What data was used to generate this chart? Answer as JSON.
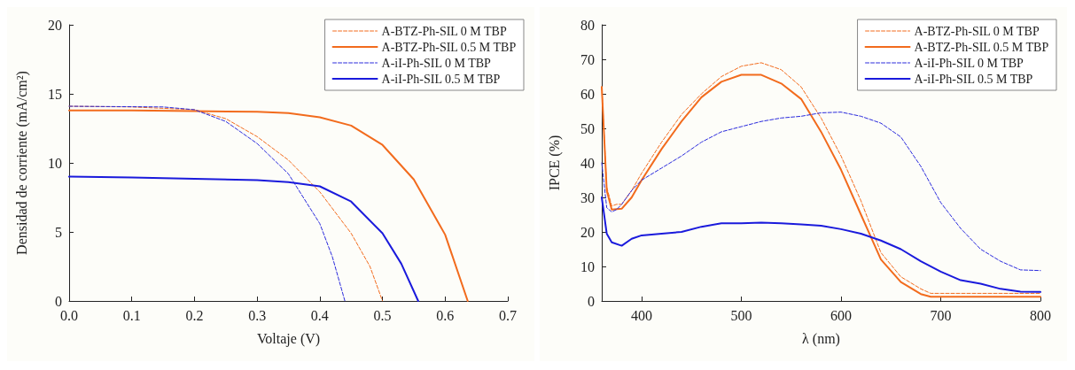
{
  "chart_data": [
    {
      "type": "line",
      "xlabel": "Voltaje (V)",
      "ylabel": "Densidad de corriente (mA/cm²)",
      "xlim": [
        0,
        0.7
      ],
      "ylim": [
        0,
        20
      ],
      "xticks": [
        {
          "value": 0,
          "label": "0.0"
        },
        0.1,
        0.2,
        0.3,
        0.4,
        0.5,
        0.6,
        0.7
      ],
      "yticks": [
        0,
        5,
        10,
        15,
        20
      ],
      "grid": false,
      "legend": "top right",
      "marker": "none",
      "series": [
        {
          "name": "A-BTZ-Ph-SIL 0 M TBP",
          "color": "#f26b1d",
          "line_style": "dashed",
          "x": [
            0,
            0.1,
            0.2,
            0.25,
            0.3,
            0.35,
            0.4,
            0.45,
            0.48,
            0.5
          ],
          "values": [
            14.1,
            14.05,
            13.85,
            13.2,
            11.9,
            10.2,
            7.9,
            4.9,
            2.5,
            0
          ]
        },
        {
          "name": "A-BTZ-Ph-SIL 0.5 M TBP",
          "color": "#f26b1d",
          "line_style": "solid",
          "x": [
            0,
            0.1,
            0.2,
            0.3,
            0.35,
            0.4,
            0.45,
            0.5,
            0.55,
            0.6,
            0.636
          ],
          "values": [
            13.8,
            13.8,
            13.75,
            13.7,
            13.6,
            13.3,
            12.7,
            11.3,
            8.8,
            4.8,
            0
          ]
        },
        {
          "name": "A-iI-Ph-SIL 0 M TBP",
          "color": "#2a2adc",
          "line_style": "dashed",
          "x": [
            0,
            0.15,
            0.2,
            0.25,
            0.3,
            0.35,
            0.4,
            0.42,
            0.44
          ],
          "values": [
            14.1,
            14.05,
            13.85,
            13.0,
            11.4,
            9.2,
            5.6,
            3.2,
            0
          ]
        },
        {
          "name": "A-iI-Ph-SIL 0.5 M TBP",
          "color": "#1a1adc",
          "line_style": "solid",
          "x": [
            0,
            0.1,
            0.2,
            0.3,
            0.35,
            0.4,
            0.45,
            0.5,
            0.53,
            0.557
          ],
          "values": [
            9.0,
            8.95,
            8.85,
            8.75,
            8.6,
            8.3,
            7.2,
            4.9,
            2.7,
            0
          ]
        }
      ]
    },
    {
      "type": "line",
      "xlabel": "λ (nm)",
      "ylabel": "IPCE (%)",
      "xlim": [
        360,
        800
      ],
      "ylim": [
        0,
        80
      ],
      "xticks": [
        400,
        500,
        600,
        700,
        800
      ],
      "yticks": [
        0,
        10,
        20,
        30,
        40,
        50,
        60,
        70,
        80
      ],
      "grid": false,
      "legend": "top right",
      "marker": "none",
      "series": [
        {
          "name": "A-BTZ-Ph-SIL 0 M TBP",
          "color": "#f26b1d",
          "line_style": "dashed",
          "x": [
            360,
            365,
            370,
            375,
            380,
            390,
            400,
            420,
            440,
            460,
            480,
            500,
            520,
            540,
            560,
            580,
            600,
            620,
            640,
            660,
            680,
            690,
            700,
            800
          ],
          "values": [
            62,
            33,
            27.5,
            28,
            28,
            32,
            37,
            46,
            54,
            60,
            65,
            68,
            69,
            67,
            62,
            53,
            42,
            29,
            14,
            7,
            3.5,
            2.2,
            2.2,
            2.2
          ]
        },
        {
          "name": "A-BTZ-Ph-SIL 0.5 M TBP",
          "color": "#f26b1d",
          "line_style": "solid",
          "x": [
            360,
            365,
            370,
            380,
            390,
            400,
            420,
            440,
            460,
            480,
            500,
            520,
            540,
            560,
            580,
            600,
            620,
            640,
            660,
            680,
            690,
            800
          ],
          "values": [
            62,
            32,
            26.5,
            26.7,
            30,
            35,
            44,
            52,
            59,
            63.5,
            65.5,
            65.5,
            63,
            58.5,
            49,
            38,
            25,
            12,
            5.5,
            2,
            1.2,
            1.2
          ]
        },
        {
          "name": "A-iI-Ph-SIL 0 M TBP",
          "color": "#2a2adc",
          "line_style": "dashed",
          "x": [
            360,
            365,
            370,
            375,
            380,
            390,
            400,
            420,
            440,
            460,
            480,
            500,
            520,
            540,
            560,
            580,
            600,
            620,
            640,
            660,
            680,
            700,
            720,
            740,
            760,
            780,
            800
          ],
          "values": [
            40,
            27,
            25.8,
            26.5,
            28,
            32,
            35,
            38.5,
            42,
            46,
            49,
            50.5,
            52,
            53,
            53.5,
            54.5,
            54.7,
            53.5,
            51.5,
            47.5,
            39,
            28.5,
            21,
            15,
            11.5,
            9,
            8.8
          ]
        },
        {
          "name": "A-iI-Ph-SIL 0.5 M TBP",
          "color": "#1a1adc",
          "line_style": "solid",
          "x": [
            360,
            365,
            370,
            380,
            390,
            400,
            420,
            440,
            460,
            480,
            500,
            520,
            540,
            560,
            580,
            600,
            620,
            640,
            660,
            680,
            700,
            720,
            740,
            760,
            780,
            800
          ],
          "values": [
            30,
            19.5,
            17,
            16,
            18,
            19,
            19.5,
            20,
            21.5,
            22.5,
            22.5,
            22.7,
            22.5,
            22.2,
            21.8,
            20.8,
            19.5,
            17.5,
            15,
            11.5,
            8.5,
            6,
            5,
            3.5,
            2.7,
            2.6
          ]
        }
      ]
    }
  ]
}
